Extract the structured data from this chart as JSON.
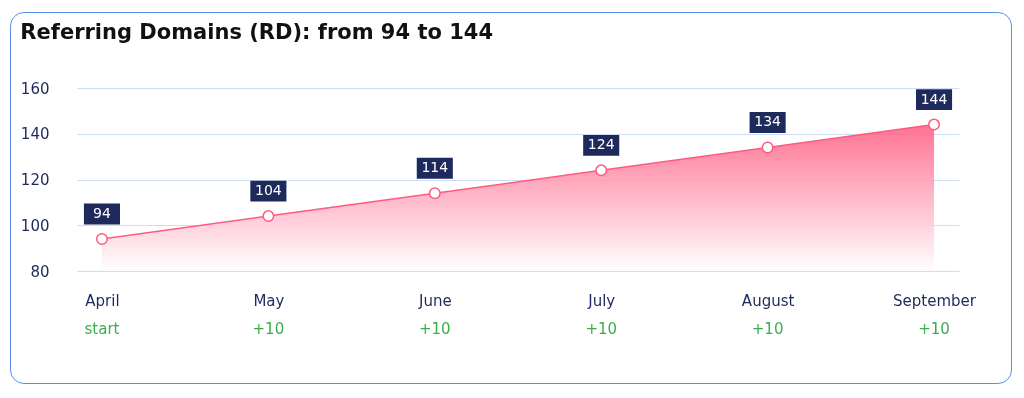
{
  "chart_data": {
    "type": "area",
    "title": "Referring Domains (RD): from 94 to 144",
    "categories": [
      "April",
      "May",
      "June",
      "July",
      "August",
      "September"
    ],
    "series": [
      {
        "color": "#ff5a80",
        "values": [
          94,
          104,
          114,
          124,
          134,
          144
        ]
      }
    ],
    "ylim": [
      80,
      160
    ],
    "yticks": [
      80,
      100,
      120,
      140,
      160
    ],
    "grid": "y",
    "marker": "circle",
    "data_labels": true,
    "annotations": [
      "start",
      "+10",
      "+10",
      "+10",
      "+10",
      "+10"
    ]
  }
}
